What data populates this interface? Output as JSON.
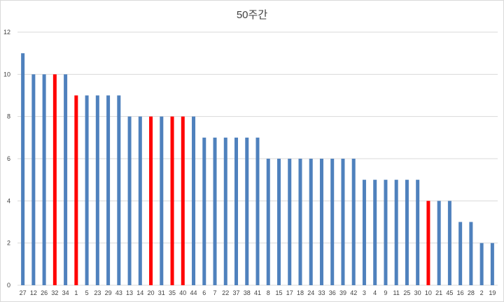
{
  "chart_data": {
    "type": "bar",
    "title": "50주간",
    "xlabel": "",
    "ylabel": "",
    "ylim": [
      0,
      12
    ],
    "yticks": [
      0,
      2,
      4,
      6,
      8,
      10,
      12
    ],
    "grid": true,
    "legend": "none",
    "categories": [
      "27",
      "12",
      "26",
      "32",
      "34",
      "1",
      "5",
      "23",
      "29",
      "43",
      "13",
      "14",
      "20",
      "31",
      "35",
      "40",
      "44",
      "6",
      "7",
      "22",
      "37",
      "38",
      "41",
      "8",
      "15",
      "17",
      "18",
      "24",
      "33",
      "36",
      "39",
      "42",
      "3",
      "4",
      "9",
      "11",
      "25",
      "30",
      "10",
      "21",
      "45",
      "16",
      "28",
      "2",
      "19"
    ],
    "values": [
      11,
      10,
      10,
      10,
      10,
      9,
      9,
      9,
      9,
      9,
      8,
      8,
      8,
      8,
      8,
      8,
      8,
      7,
      7,
      7,
      7,
      7,
      7,
      6,
      6,
      6,
      6,
      6,
      6,
      6,
      6,
      6,
      5,
      5,
      5,
      5,
      5,
      5,
      4,
      4,
      4,
      3,
      3,
      2,
      2
    ],
    "highlighted": [
      "32",
      "1",
      "20",
      "35",
      "40",
      "10"
    ],
    "colors": {
      "default": "#4f81bd",
      "highlight": "#ff0000",
      "grid": "#d9d9d9",
      "text": "#404040"
    }
  }
}
